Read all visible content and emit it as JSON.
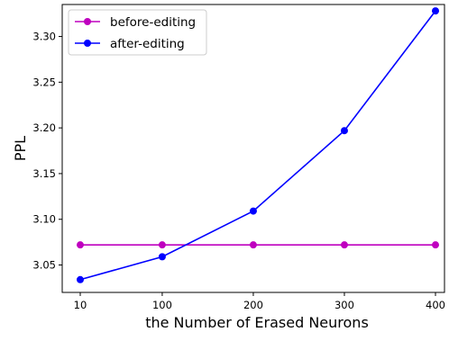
{
  "chart_data": {
    "type": "line",
    "title": "",
    "xlabel": "the Number of Erased Neurons",
    "ylabel": "PPL",
    "categories": [
      "10",
      "100",
      "200",
      "300",
      "400"
    ],
    "x": [
      10,
      100,
      200,
      300,
      400
    ],
    "ylim": [
      3.02,
      3.335
    ],
    "yticks": [
      3.05,
      3.1,
      3.15,
      3.2,
      3.25,
      3.3
    ],
    "ytick_labels": [
      "3.05",
      "3.10",
      "3.15",
      "3.20",
      "3.25",
      "3.30"
    ],
    "grid": false,
    "legend_position": "top-left",
    "series": [
      {
        "name": "before-editing",
        "color": "#bf00bf",
        "marker": "circle",
        "values": [
          3.072,
          3.072,
          3.072,
          3.072,
          3.072
        ]
      },
      {
        "name": "after-editing",
        "color": "#0000ff",
        "marker": "circle",
        "values": [
          3.034,
          3.059,
          3.109,
          3.197,
          3.328
        ]
      }
    ]
  }
}
